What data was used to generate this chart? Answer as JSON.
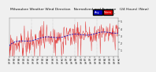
{
  "title": "Milwaukee Weather Wind Direction   Normalized and Average   (24 Hours) (New)",
  "bg_color": "#f0f0f0",
  "plot_bg_color": "#f0f0f0",
  "grid_color": "#aaaaaa",
  "line1_color": "#dd0000",
  "line2_color": "#0000bb",
  "ylim": [
    0.0,
    5.5
  ],
  "yticks": [
    1,
    2,
    3,
    4,
    5
  ],
  "n_points": 300,
  "n_xticks": 24,
  "title_fontsize": 3.2,
  "tick_fontsize": 2.2,
  "legend_fontsize": 2.5,
  "xtick_labels": [
    "01",
    "02",
    "03",
    "04",
    "05",
    "06",
    "07",
    "08",
    "09",
    "10",
    "11",
    "12",
    "01",
    "02",
    "03",
    "04",
    "05",
    "06",
    "07",
    "08",
    "09",
    "10",
    "11",
    "12"
  ],
  "xtick_years": [
    "15",
    "15",
    "15",
    "15",
    "15",
    "15",
    "15",
    "15",
    "15",
    "15",
    "15",
    "15",
    "16",
    "16",
    "16",
    "16",
    "16",
    "16",
    "16",
    "16",
    "16",
    "16",
    "16",
    "16"
  ],
  "n_vgrid": 5
}
